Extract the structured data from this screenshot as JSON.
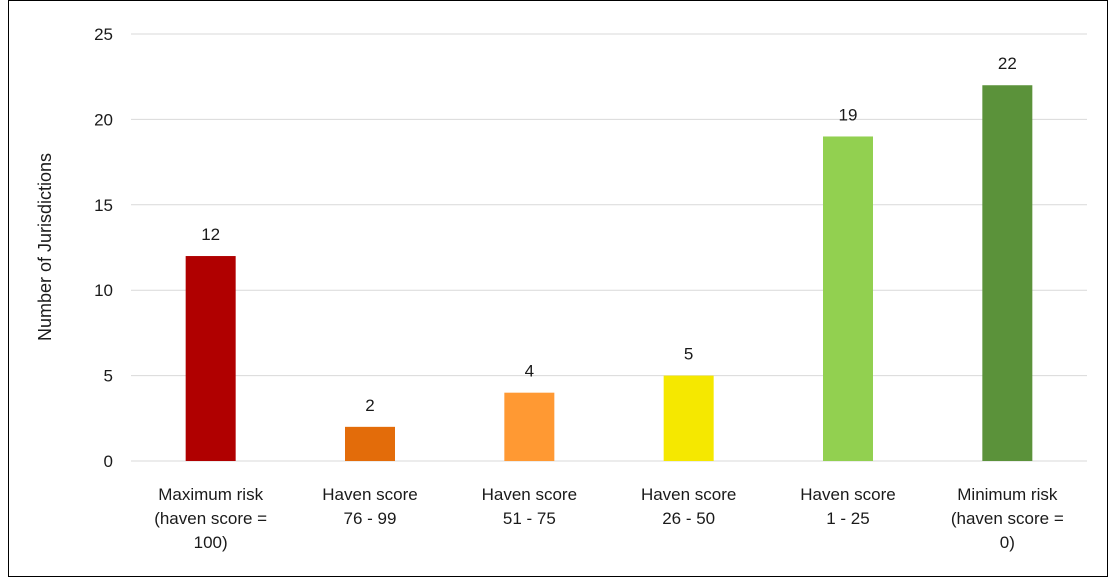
{
  "chart_data": {
    "type": "bar",
    "title": "",
    "xlabel": "",
    "ylabel": "Number of Jurisdictions",
    "ylim": [
      0,
      25
    ],
    "yticks": [
      0,
      5,
      10,
      15,
      20,
      25
    ],
    "grid": true,
    "legend": "none",
    "categories": [
      [
        "Maximum risk",
        "(haven score =",
        "100)"
      ],
      [
        "Haven score",
        "76 - 99"
      ],
      [
        "Haven score",
        "51 - 75"
      ],
      [
        "Haven score",
        "26 - 50"
      ],
      [
        "Haven score",
        "1 - 25"
      ],
      [
        "Minimum risk",
        "(haven score =",
        "0)"
      ]
    ],
    "values": [
      12,
      2,
      4,
      5,
      19,
      22
    ],
    "colors": [
      "#b00000",
      "#e36c0a",
      "#ff9933",
      "#f5e800",
      "#92d050",
      "#5b923a"
    ]
  }
}
